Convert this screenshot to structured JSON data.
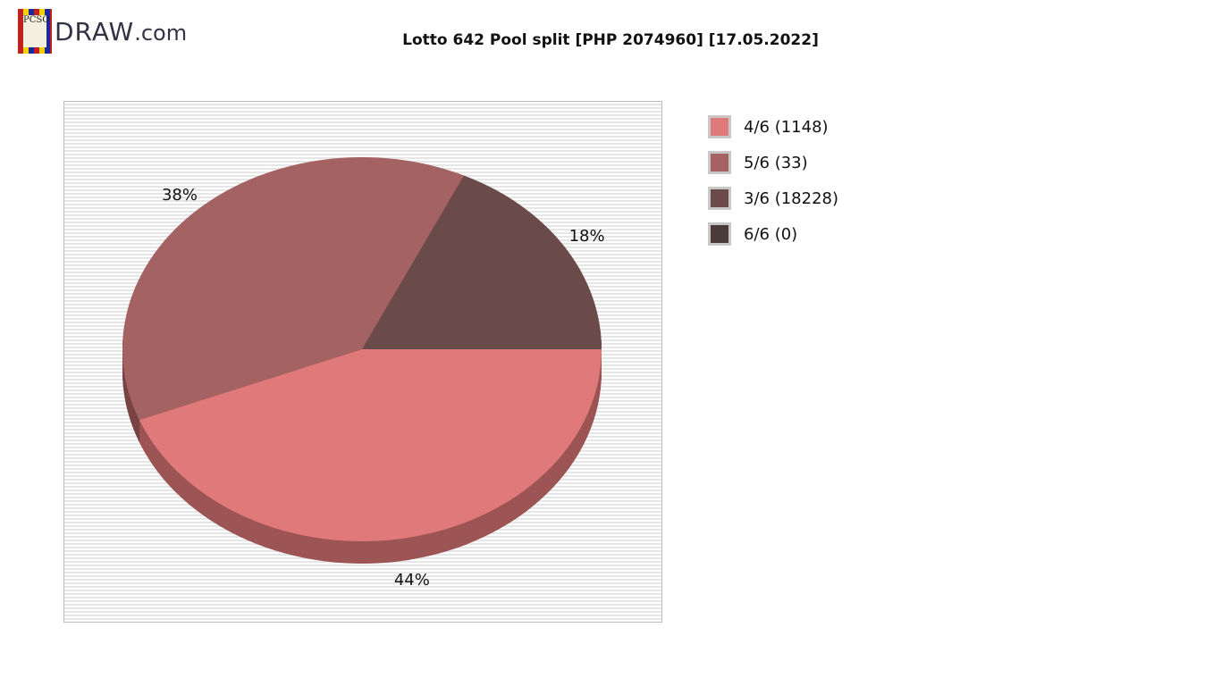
{
  "logo": {
    "badge": "PCSO",
    "text": "DRAW",
    ".com": ".com"
  },
  "chart_data": {
    "type": "pie",
    "title": "Lotto 642 Pool split [PHP 2074960] [17.05.2022]",
    "slices": [
      {
        "label": "4/6 (1148)",
        "percent": 44,
        "color": "#e07a7a",
        "side_color": "#9c5454",
        "pct_label": "44%"
      },
      {
        "label": "5/6 (33)",
        "percent": 38,
        "color": "#a56262",
        "side_color": "#7a4444",
        "pct_label": "38%"
      },
      {
        "label": "3/6 (18228)",
        "percent": 18,
        "color": "#6b4a4a",
        "side_color": "#4d3434",
        "pct_label": "18%"
      },
      {
        "label": "6/6 (0)",
        "percent": 0,
        "color": "#4a3a3a",
        "side_color": "#332828",
        "pct_label": ""
      }
    ],
    "legend_placement": "right",
    "style": "3d"
  }
}
